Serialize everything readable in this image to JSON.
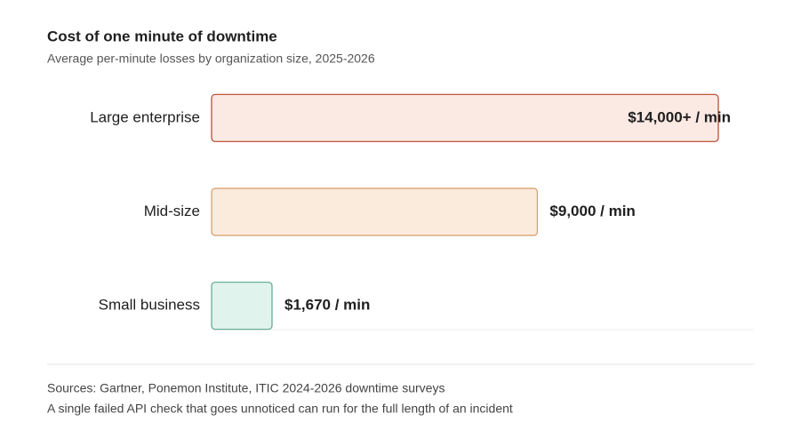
{
  "chart_data": {
    "type": "bar",
    "orientation": "horizontal",
    "title": "Cost of one minute of downtime",
    "subtitle": "Average per-minute losses by organization size, 2025-2026",
    "categories": [
      "Large enterprise",
      "Mid-size",
      "Small business"
    ],
    "values": [
      14000,
      9000,
      1670
    ],
    "value_labels": [
      "$14,000+ / min",
      "$9,000 / min",
      "$1,670 / min"
    ],
    "colors": [
      "#fbe9e3",
      "#fbebdc",
      "#e0f3ec"
    ],
    "stroke_colors": [
      "#b5432a",
      "#d49a6a",
      "#5aa88a"
    ],
    "footnotes": [
      "Sources: Gartner, Ponemon Institute, ITIC 2024-2026 downtime surveys",
      "A single failed API check that goes unnoticed can run for the full length of an incident"
    ]
  }
}
